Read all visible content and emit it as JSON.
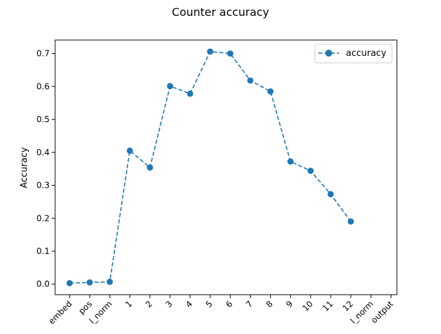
{
  "chart_data": {
    "type": "line",
    "title": "Counter accuracy",
    "xlabel": "",
    "ylabel": "Accuracy",
    "categories": [
      "embed",
      "pos",
      "l_norm",
      "1",
      "2",
      "3",
      "4",
      "5",
      "6",
      "7",
      "8",
      "9",
      "10",
      "11",
      "12",
      "l_norm",
      "output"
    ],
    "series": [
      {
        "name": "accuracy",
        "color": "#1f77b4",
        "line_style": "dashed",
        "marker": "circle",
        "values": [
          0.003,
          0.005,
          0.007,
          0.405,
          0.354,
          0.601,
          0.578,
          0.706,
          0.7,
          0.618,
          0.585,
          0.372,
          0.344,
          0.273,
          0.19,
          null,
          null
        ]
      }
    ],
    "ylim": [
      -0.032,
      0.741
    ],
    "yticks": [
      "0.0",
      "0.1",
      "0.2",
      "0.3",
      "0.4",
      "0.5",
      "0.6",
      "0.7"
    ],
    "ytick_values": [
      0.0,
      0.1,
      0.2,
      0.3,
      0.4,
      0.5,
      0.6,
      0.7
    ],
    "grid": false,
    "legend_position": "top-right"
  }
}
